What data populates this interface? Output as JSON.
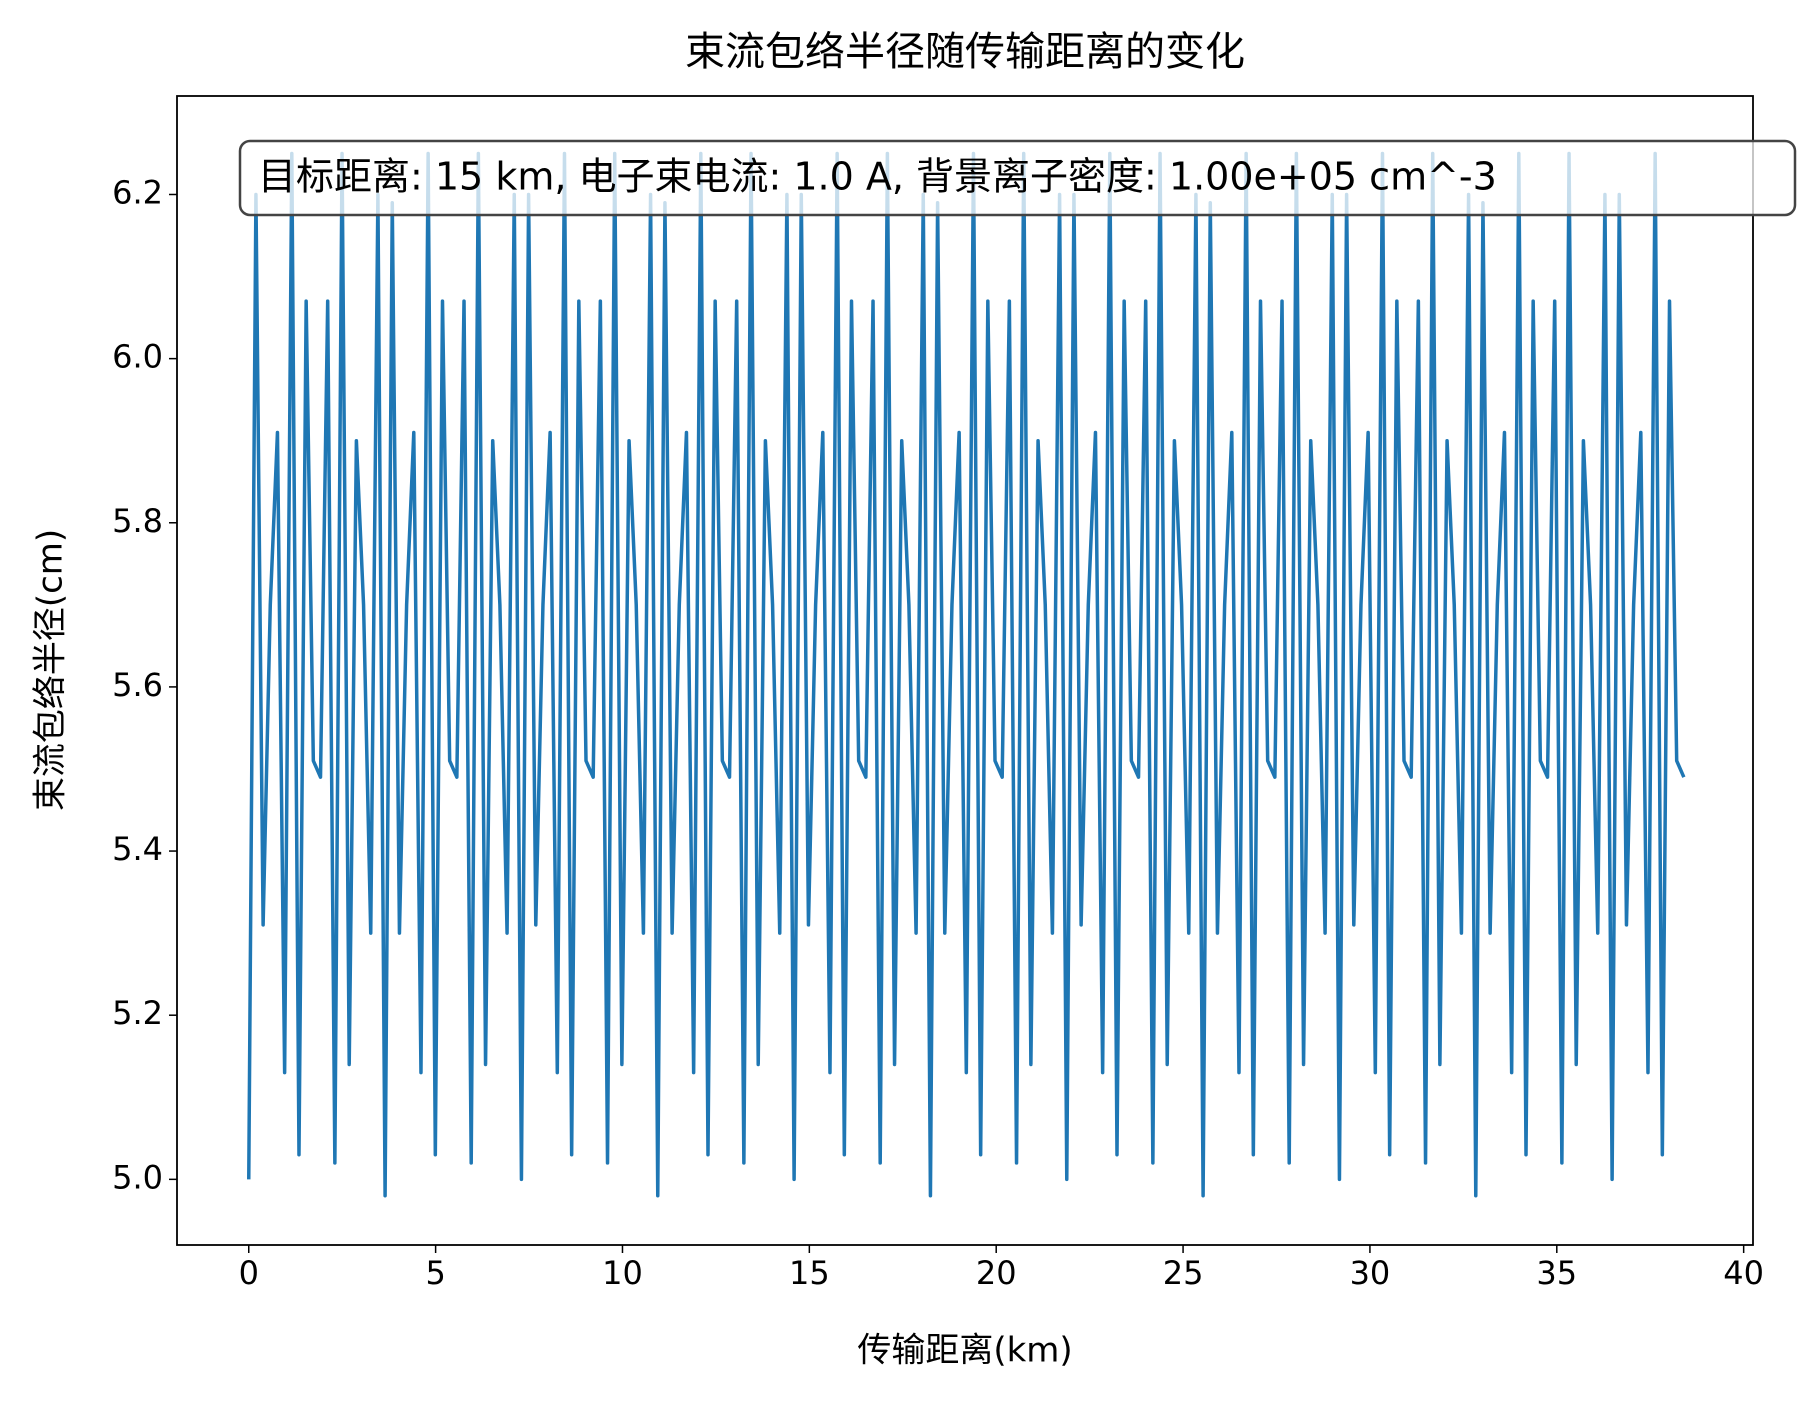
{
  "chart_data": {
    "type": "line",
    "title": "束流包络半径随传输距离的变化",
    "xlabel": "传输距离(km)",
    "ylabel": "束流包络半径(cm)",
    "annotation": "目标距离: 15 km, 电子束电流: 1.0 A, 背景离子密度: 1.00e+05 cm^-3",
    "xlim": [
      -1.92,
      40.25
    ],
    "ylim": [
      4.92,
      6.32
    ],
    "xticks": [
      0,
      5,
      10,
      15,
      20,
      25,
      30,
      35,
      40
    ],
    "yticks": [
      {
        "value": 5.0,
        "label": "5.0"
      },
      5.2,
      5.4,
      5.6,
      5.8,
      {
        "value": 6.0,
        "label": "6.0"
      },
      6.2
    ],
    "grid": false,
    "series": [
      {
        "color": "#1f77b4",
        "x": [
          0,
          0.192,
          0.384,
          0.576,
          0.768,
          0.96,
          1.152,
          1.344,
          1.536,
          1.728,
          1.92,
          2.112,
          2.304,
          2.496,
          2.688,
          2.88,
          3.072,
          3.264,
          3.456,
          3.648,
          3.84,
          4.032,
          4.224,
          4.416,
          4.608,
          4.8,
          4.992,
          5.184,
          5.376,
          5.568,
          5.76,
          5.952,
          6.144,
          6.336,
          6.528,
          6.72,
          6.912,
          7.104,
          7.296,
          7.488,
          7.68,
          7.872,
          8.064,
          8.256,
          8.448,
          8.64,
          8.832,
          9.024,
          9.216,
          9.408,
          9.6,
          9.792,
          9.984,
          10.176,
          10.368,
          10.56,
          10.752,
          10.944,
          11.136,
          11.328,
          11.52,
          11.712,
          11.904,
          12.096,
          12.288,
          12.48,
          12.672,
          12.864,
          13.056,
          13.248,
          13.44,
          13.632,
          13.824,
          14.016,
          14.208,
          14.4,
          14.592,
          14.784,
          14.976,
          15.168,
          15.36,
          15.552,
          15.744,
          15.936,
          16.128,
          16.32,
          16.512,
          16.704,
          16.896,
          17.088,
          17.28,
          17.472,
          17.664,
          17.856,
          18.048,
          18.24,
          18.432,
          18.624,
          18.816,
          19.008,
          19.2,
          19.392,
          19.584,
          19.776,
          19.968,
          20.16,
          20.352,
          20.544,
          20.736,
          20.928,
          21.12,
          21.312,
          21.504,
          21.696,
          21.888,
          22.08,
          22.272,
          22.464,
          22.656,
          22.848,
          23.04,
          23.232,
          23.424,
          23.616,
          23.808,
          24,
          24.192,
          24.384,
          24.576,
          24.768,
          24.96,
          25.152,
          25.344,
          25.536,
          25.728,
          25.92,
          26.112,
          26.304,
          26.496,
          26.688,
          26.88,
          27.072,
          27.264,
          27.456,
          27.648,
          27.84,
          28.032,
          28.224,
          28.416,
          28.608,
          28.8,
          28.992,
          29.184,
          29.376,
          29.568,
          29.76,
          29.952,
          30.144,
          30.336,
          30.528,
          30.72,
          30.912,
          31.104,
          31.296,
          31.488,
          31.68,
          31.872,
          32.064,
          32.256,
          32.448,
          32.64,
          32.832,
          33.024,
          33.216,
          33.408,
          33.6,
          33.792,
          33.984,
          34.176,
          34.368,
          34.56,
          34.752,
          34.944,
          35.136,
          35.328,
          35.52,
          35.712,
          35.904,
          36.096,
          36.288,
          36.48,
          36.672,
          36.864,
          37.056,
          37.248,
          37.44,
          37.632,
          37.824,
          38.016,
          38.208,
          38.4
        ],
        "values": [
          5.0,
          6.2,
          5.31,
          5.7,
          5.91,
          5.13,
          6.25,
          5.03,
          6.07,
          5.51,
          5.49,
          6.07,
          5.02,
          6.25,
          5.14,
          5.9,
          5.7,
          5.3,
          6.2,
          4.98,
          6.19,
          5.3,
          5.7,
          5.91,
          5.13,
          6.25,
          5.03,
          6.07,
          5.51,
          5.49,
          6.07,
          5.02,
          6.25,
          5.14,
          5.9,
          5.7,
          5.3,
          6.2,
          5.0,
          6.2,
          5.31,
          5.7,
          5.91,
          5.13,
          6.25,
          5.03,
          6.07,
          5.51,
          5.49,
          6.07,
          5.02,
          6.25,
          5.14,
          5.9,
          5.7,
          5.3,
          6.2,
          4.98,
          6.19,
          5.3,
          5.7,
          5.91,
          5.13,
          6.25,
          5.03,
          6.07,
          5.51,
          5.49,
          6.07,
          5.02,
          6.25,
          5.14,
          5.9,
          5.7,
          5.3,
          6.2,
          5.0,
          6.2,
          5.31,
          5.7,
          5.91,
          5.13,
          6.25,
          5.03,
          6.07,
          5.51,
          5.49,
          6.07,
          5.02,
          6.25,
          5.14,
          5.9,
          5.7,
          5.3,
          6.2,
          4.98,
          6.19,
          5.3,
          5.7,
          5.91,
          5.13,
          6.25,
          5.03,
          6.07,
          5.51,
          5.49,
          6.07,
          5.02,
          6.25,
          5.14,
          5.9,
          5.7,
          5.3,
          6.2,
          5.0,
          6.2,
          5.31,
          5.7,
          5.91,
          5.13,
          6.25,
          5.03,
          6.07,
          5.51,
          5.49,
          6.07,
          5.02,
          6.25,
          5.14,
          5.9,
          5.7,
          5.3,
          6.2,
          4.98,
          6.19,
          5.3,
          5.7,
          5.91,
          5.13,
          6.25,
          5.03,
          6.07,
          5.51,
          5.49,
          6.07,
          5.02,
          6.25,
          5.14,
          5.9,
          5.7,
          5.3,
          6.2,
          5.0,
          6.2,
          5.31,
          5.7,
          5.91,
          5.13,
          6.25,
          5.03,
          6.07,
          5.51,
          5.49,
          6.07,
          5.02,
          6.25,
          5.14,
          5.9,
          5.7,
          5.3,
          6.2,
          4.98,
          6.19,
          5.3,
          5.7,
          5.91,
          5.13,
          6.25,
          5.03,
          6.07,
          5.51,
          5.49,
          6.07,
          5.02,
          6.25,
          5.14,
          5.9,
          5.7,
          5.3,
          6.2,
          5.0,
          6.2,
          5.31,
          5.7,
          5.91,
          5.13,
          6.25,
          5.03,
          6.07,
          5.51,
          5.49
        ]
      }
    ]
  }
}
